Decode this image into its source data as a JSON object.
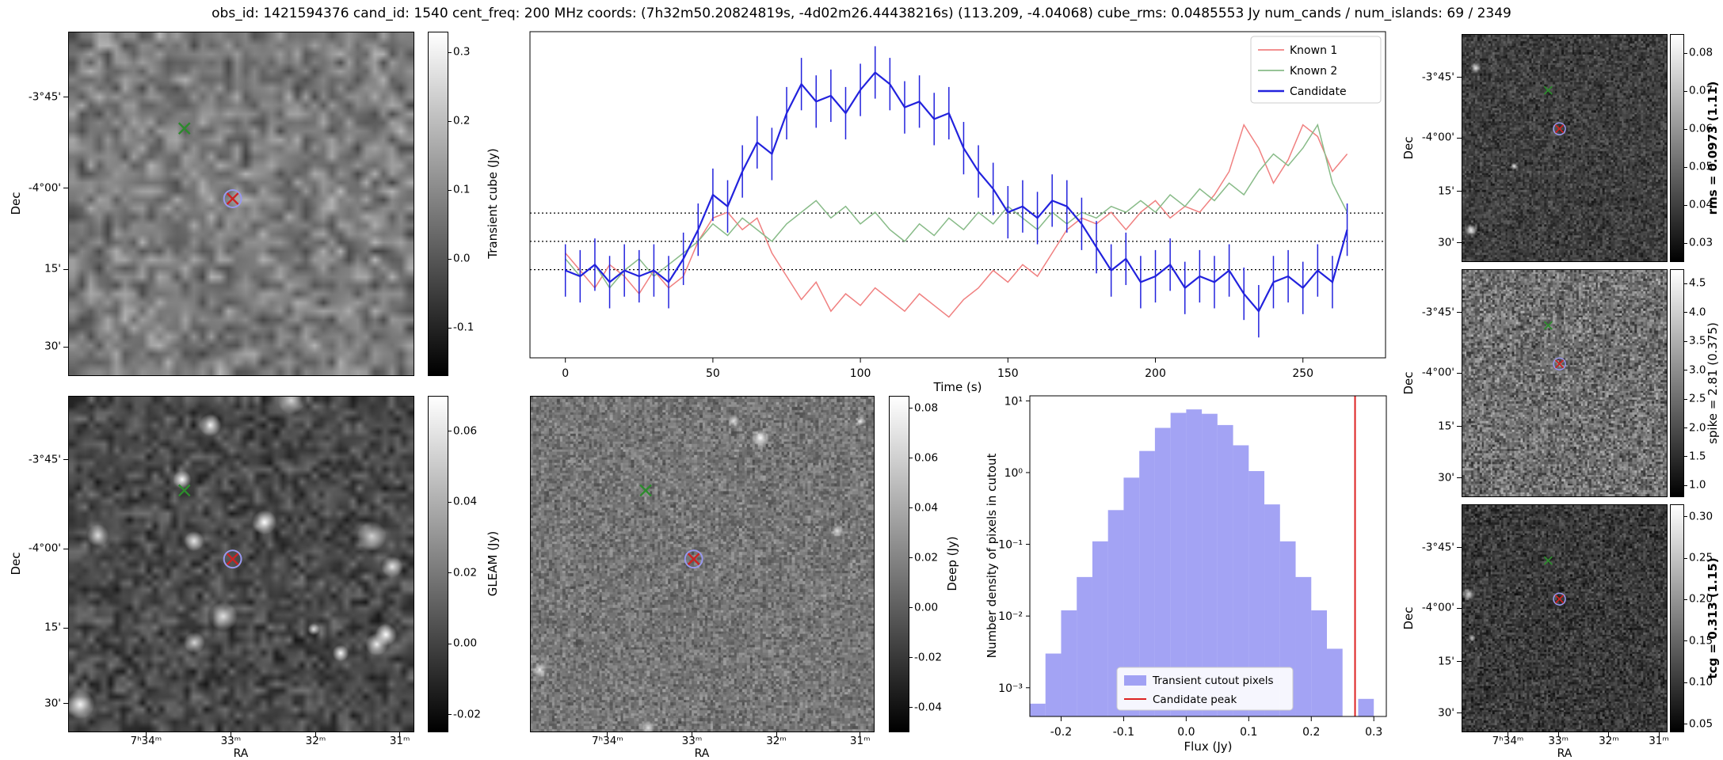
{
  "title": "obs_id: 1421594376 cand_id: 1540 cent_freq: 200 MHz coords: (7h32m50.20824819s, -4d02m26.44438216s) (113.209, -4.04068) cube_rms: 0.0485553 Jy num_cands / num_islands: 69 / 2349",
  "axis": {
    "dec_label": "Dec",
    "ra_label": "RA",
    "dec_ticks": [
      "-3°45'",
      "-4°00'",
      "15'",
      "30'"
    ],
    "ra_ticks": [
      "7ʰ34ᵐ",
      "33ᵐ",
      "32ᵐ",
      "31ᵐ"
    ]
  },
  "colors": {
    "known1": "#f08080",
    "known2": "#88bb88",
    "candidate": "#2222dd",
    "hist_fill": "#8080f0",
    "peak_line": "#dd2222",
    "marker_known": "#2d8a2d",
    "marker_candidate": "#cc2222",
    "marker_ring": "#9898ee",
    "dotted_line": "#000000",
    "legend_border": "#cccccc"
  },
  "markers": {
    "main": {
      "known": [
        0.335,
        0.28
      ],
      "candidate": [
        0.475,
        0.485
      ]
    },
    "small": {
      "known": [
        0.42,
        0.245
      ],
      "candidate": [
        0.475,
        0.415
      ]
    }
  },
  "cutouts": {
    "transient": {
      "cbar_label": "Transient cube (Jy)",
      "cbar_range": [
        -0.17,
        0.33
      ],
      "cbar_ticks": [
        {
          "label": "0.3",
          "v": 0.3
        },
        {
          "label": "0.2",
          "v": 0.2
        },
        {
          "label": "0.1",
          "v": 0.1
        },
        {
          "label": "0.0",
          "v": 0.0
        },
        {
          "label": "-0.1",
          "v": -0.1
        }
      ]
    },
    "gleam": {
      "cbar_label": "GLEAM (Jy)",
      "cbar_range": [
        -0.025,
        0.07
      ],
      "cbar_ticks": [
        {
          "label": "0.06",
          "v": 0.06
        },
        {
          "label": "0.04",
          "v": 0.04
        },
        {
          "label": "0.02",
          "v": 0.02
        },
        {
          "label": "0.00",
          "v": 0.0
        },
        {
          "label": "-0.02",
          "v": -0.02
        }
      ]
    },
    "deep": {
      "cbar_label": "Deep (Jy)",
      "cbar_range": [
        -0.05,
        0.085
      ],
      "cbar_ticks": [
        {
          "label": "0.08",
          "v": 0.08
        },
        {
          "label": "0.06",
          "v": 0.06
        },
        {
          "label": "0.04",
          "v": 0.04
        },
        {
          "label": "0.02",
          "v": 0.02
        },
        {
          "label": "0.00",
          "v": 0.0
        },
        {
          "label": "-0.02",
          "v": -0.02
        },
        {
          "label": "-0.04",
          "v": -0.04
        }
      ]
    },
    "rms": {
      "cbar_label": "rms = 0.0973 (1.11)",
      "cbar_range": [
        0.025,
        0.085
      ],
      "cbar_ticks": [
        {
          "label": "0.08",
          "v": 0.08
        },
        {
          "label": "0.07",
          "v": 0.07
        },
        {
          "label": "0.06",
          "v": 0.06
        },
        {
          "label": "0.05",
          "v": 0.05
        },
        {
          "label": "0.04",
          "v": 0.04
        },
        {
          "label": "0.03",
          "v": 0.03
        }
      ]
    },
    "spike": {
      "cbar_label": "spike = 2.81 (0.375)",
      "cbar_range": [
        0.8,
        4.75
      ],
      "cbar_ticks": [
        {
          "label": "4.5",
          "v": 4.5
        },
        {
          "label": "4.0",
          "v": 4.0
        },
        {
          "label": "3.5",
          "v": 3.5
        },
        {
          "label": "3.0",
          "v": 3.0
        },
        {
          "label": "2.5",
          "v": 2.5
        },
        {
          "label": "2.0",
          "v": 2.0
        },
        {
          "label": "1.5",
          "v": 1.5
        },
        {
          "label": "1.0",
          "v": 1.0
        }
      ]
    },
    "tcg": {
      "cbar_label": "tcg = 0.313 (1.15)",
      "cbar_range": [
        0.04,
        0.315
      ],
      "cbar_ticks": [
        {
          "label": "0.30",
          "v": 0.3
        },
        {
          "label": "0.25",
          "v": 0.25
        },
        {
          "label": "0.20",
          "v": 0.2
        },
        {
          "label": "0.15",
          "v": 0.15
        },
        {
          "label": "0.10",
          "v": 0.1
        },
        {
          "label": "0.05",
          "v": 0.05
        }
      ]
    }
  },
  "chart_data": [
    {
      "type": "line",
      "title": "",
      "xlabel": "Time (s)",
      "ylabel": "",
      "xlim": [
        -12,
        278
      ],
      "ylim": [
        -0.2,
        0.36
      ],
      "xticks": [
        0,
        50,
        100,
        150,
        200,
        250
      ],
      "hlines": [
        0.0486,
        0.0,
        -0.0486
      ],
      "legend_position": "upper right",
      "x": [
        0,
        5,
        10,
        15,
        20,
        25,
        30,
        35,
        40,
        45,
        50,
        55,
        60,
        65,
        70,
        75,
        80,
        85,
        90,
        95,
        100,
        105,
        110,
        115,
        120,
        125,
        130,
        135,
        140,
        145,
        150,
        155,
        160,
        165,
        170,
        175,
        180,
        185,
        190,
        195,
        200,
        205,
        210,
        215,
        220,
        225,
        230,
        235,
        240,
        245,
        250,
        255,
        260,
        265
      ],
      "series": [
        {
          "name": "Known 1",
          "values": [
            -0.02,
            -0.05,
            -0.08,
            -0.04,
            -0.06,
            -0.09,
            -0.05,
            -0.08,
            -0.06,
            0.0,
            0.04,
            0.05,
            0.02,
            0.04,
            -0.02,
            -0.06,
            -0.1,
            -0.07,
            -0.12,
            -0.09,
            -0.11,
            -0.08,
            -0.1,
            -0.12,
            -0.09,
            -0.11,
            -0.13,
            -0.1,
            -0.08,
            -0.05,
            -0.07,
            -0.04,
            -0.06,
            -0.02,
            0.02,
            0.04,
            0.03,
            0.05,
            0.02,
            0.05,
            0.07,
            0.04,
            0.06,
            0.05,
            0.08,
            0.12,
            0.2,
            0.16,
            0.1,
            0.14,
            0.2,
            0.18,
            0.12,
            0.15
          ]
        },
        {
          "name": "Known 2",
          "values": [
            -0.03,
            -0.06,
            -0.04,
            -0.08,
            -0.05,
            -0.03,
            -0.06,
            -0.04,
            -0.02,
            0.0,
            0.03,
            0.01,
            0.04,
            0.02,
            0.0,
            0.03,
            0.05,
            0.07,
            0.04,
            0.06,
            0.03,
            0.05,
            0.02,
            0.0,
            0.03,
            0.01,
            0.04,
            0.02,
            0.05,
            0.03,
            0.06,
            0.04,
            0.02,
            0.05,
            0.03,
            0.05,
            0.04,
            0.06,
            0.05,
            0.07,
            0.05,
            0.08,
            0.06,
            0.09,
            0.07,
            0.1,
            0.08,
            0.12,
            0.15,
            0.13,
            0.16,
            0.2,
            0.1,
            0.05
          ]
        },
        {
          "name": "Candidate",
          "yerr": 0.045,
          "values": [
            -0.05,
            -0.06,
            -0.04,
            -0.07,
            -0.05,
            -0.06,
            -0.05,
            -0.07,
            -0.03,
            0.02,
            0.08,
            0.06,
            0.12,
            0.17,
            0.15,
            0.22,
            0.27,
            0.24,
            0.25,
            0.22,
            0.26,
            0.29,
            0.27,
            0.23,
            0.24,
            0.21,
            0.22,
            0.16,
            0.12,
            0.09,
            0.05,
            0.06,
            0.04,
            0.07,
            0.06,
            0.03,
            -0.01,
            -0.05,
            -0.03,
            -0.07,
            -0.06,
            -0.04,
            -0.08,
            -0.06,
            -0.07,
            -0.05,
            -0.09,
            -0.12,
            -0.07,
            -0.06,
            -0.08,
            -0.05,
            -0.07,
            0.02
          ]
        }
      ]
    },
    {
      "type": "bar",
      "title": "",
      "xlabel": "Flux (Jy)",
      "ylabel": "Number density of pixels in cutout",
      "xlim": [
        -0.25,
        0.32
      ],
      "ylog": true,
      "ylim_exp": [
        -3.4,
        1.07
      ],
      "xticks": [
        -0.2,
        -0.1,
        0.0,
        0.1,
        0.2,
        0.3
      ],
      "yticks": [
        "10¹",
        "10⁰",
        "10⁻¹",
        "10⁻²",
        "10⁻³"
      ],
      "ytick_exps": [
        1,
        0,
        -1,
        -2,
        -3
      ],
      "bin_start": -0.25,
      "bin_width": 0.025,
      "densities": [
        0.0006,
        0.003,
        0.012,
        0.035,
        0.11,
        0.3,
        0.85,
        2.0,
        4.2,
        6.8,
        7.6,
        6.6,
        4.6,
        2.4,
        1.05,
        0.36,
        0.11,
        0.035,
        0.012,
        0.0035,
        0,
        0.0007
      ],
      "peak_flux": 0.27,
      "legend": [
        "Transient cutout pixels",
        "Candidate peak"
      ]
    }
  ]
}
